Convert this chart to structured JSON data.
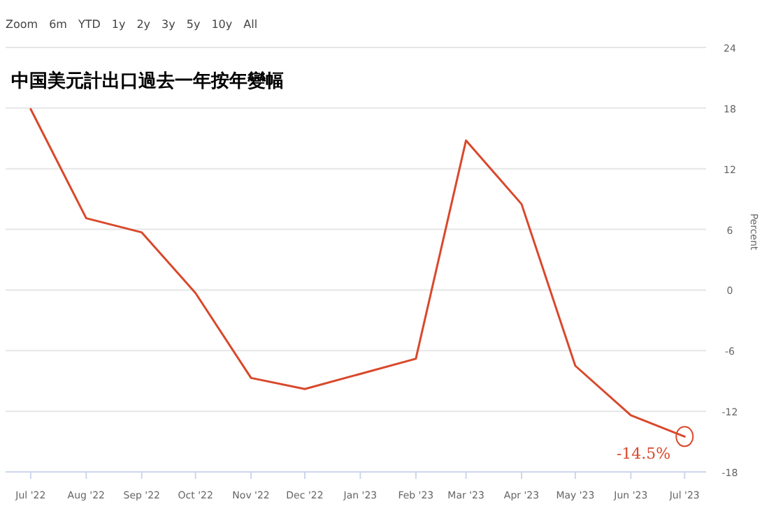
{
  "chart_data": {
    "type": "line",
    "title": "中国美元計出口過去一年按年變幅",
    "ylabel": "Percent",
    "x": [
      "2022-07-01",
      "2022-08-01",
      "2022-09-01",
      "2022-10-01",
      "2022-11-01",
      "2022-12-01",
      "2023-02-01",
      "2023-03-01",
      "2023-04-01",
      "2023-05-01",
      "2023-06-01",
      "2023-07-01"
    ],
    "series": [
      {
        "color": "#d9482b",
        "values": [
          17.9,
          7.1,
          5.7,
          -0.3,
          -8.7,
          -9.8,
          -6.8,
          14.8,
          8.5,
          -7.5,
          -12.4,
          -14.5
        ]
      }
    ],
    "xlim": [
      "2022-06-17",
      "2023-07-13"
    ],
    "xticks": [
      {
        "value": "2022-07-01",
        "label": "Jul '22"
      },
      {
        "value": "2022-08-01",
        "label": "Aug '22"
      },
      {
        "value": "2022-09-01",
        "label": "Sep '22"
      },
      {
        "value": "2022-10-01",
        "label": "Oct '22"
      },
      {
        "value": "2022-11-01",
        "label": "Nov '22"
      },
      {
        "value": "2022-12-01",
        "label": "Dec '22"
      },
      {
        "value": "2023-01-01",
        "label": "Jan '23"
      },
      {
        "value": "2023-02-01",
        "label": "Feb '23"
      },
      {
        "value": "2023-03-01",
        "label": "Mar '23"
      },
      {
        "value": "2023-04-01",
        "label": "Apr '23"
      },
      {
        "value": "2023-05-01",
        "label": "May '23"
      },
      {
        "value": "2023-06-01",
        "label": "Jun '23"
      },
      {
        "value": "2023-07-01",
        "label": "Jul '23"
      }
    ],
    "ylim": [
      -18,
      24
    ],
    "yticks": [
      -18,
      -12,
      -6,
      0,
      6,
      12,
      18,
      24
    ],
    "grid": "y",
    "marker": "none",
    "line_style": "solid",
    "annotations": [
      "Zoom",
      "6m",
      "YTD",
      "1y",
      "2y",
      "3y",
      "5y",
      "10y",
      "All",
      {
        "text": "-14.5%",
        "x": "2023-07-01",
        "y": -14.5
      }
    ]
  }
}
